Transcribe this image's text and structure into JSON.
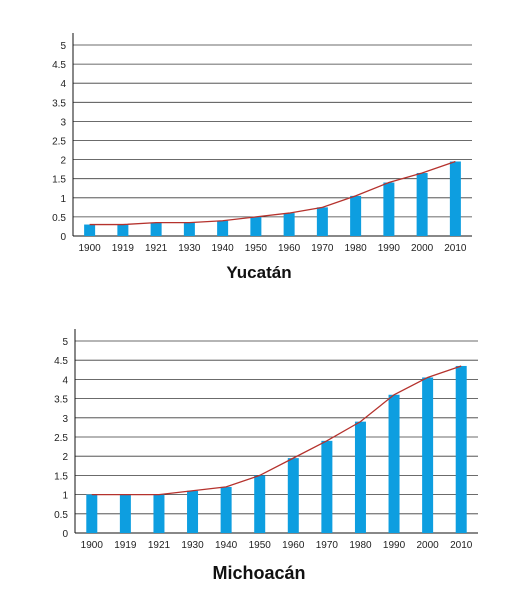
{
  "chart_data": [
    {
      "type": "bar",
      "title": "Yucatán",
      "categories": [
        "1900",
        "1919",
        "1921",
        "1930",
        "1940",
        "1950",
        "1960",
        "1970",
        "1980",
        "1990",
        "2000",
        "2010"
      ],
      "values": [
        0.3,
        0.3,
        0.35,
        0.35,
        0.4,
        0.5,
        0.6,
        0.75,
        1.05,
        1.4,
        1.65,
        1.95
      ],
      "overlay_line": true,
      "ylim": [
        0,
        5
      ],
      "yticks": [
        "0",
        "0.5",
        "1",
        "1.5",
        "2",
        "2.5",
        "3",
        "3.5",
        "4",
        "4.5",
        "5"
      ],
      "xlabel": "",
      "ylabel": "",
      "grid": true,
      "colors": {
        "bar": "#0d9ee0",
        "line": "#b5322d"
      }
    },
    {
      "type": "bar",
      "title": "Michoacán",
      "categories": [
        "1900",
        "1919",
        "1921",
        "1930",
        "1940",
        "1950",
        "1960",
        "1970",
        "1980",
        "1990",
        "2000",
        "2010"
      ],
      "values": [
        1.0,
        1.0,
        1.0,
        1.1,
        1.2,
        1.5,
        1.95,
        2.4,
        2.9,
        3.6,
        4.05,
        4.35
      ],
      "overlay_line": true,
      "ylim": [
        0,
        5
      ],
      "yticks": [
        "0",
        "0.5",
        "1",
        "1.5",
        "2",
        "2.5",
        "3",
        "3.5",
        "4",
        "4.5",
        "5"
      ],
      "xlabel": "",
      "ylabel": "",
      "grid": true,
      "colors": {
        "bar": "#0d9ee0",
        "line": "#b5322d"
      }
    }
  ]
}
